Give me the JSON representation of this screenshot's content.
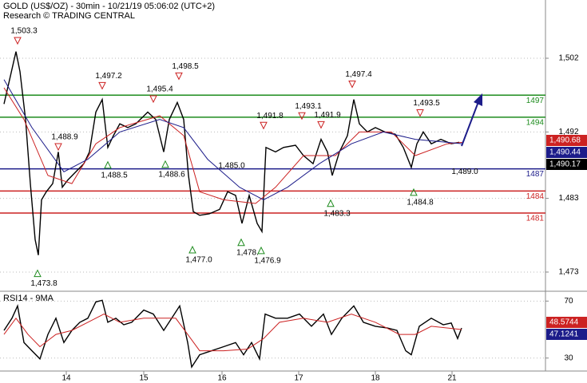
{
  "chart_data": [
    {
      "type": "line",
      "title": "GOLD (US$/OZ) - 30min - 10/21/19 05:06:02 (UTC+2)",
      "subtitle": "Research © TRADING CENTRAL",
      "xlim": [
        0,
        341.5
      ],
      "xticks": [
        {
          "value": 41.5,
          "label": "14"
        },
        {
          "value": 90,
          "label": "15"
        },
        {
          "value": 139,
          "label": "16"
        },
        {
          "value": 187,
          "label": "17"
        },
        {
          "value": 235,
          "label": "18"
        },
        {
          "value": 283,
          "label": "21"
        }
      ],
      "ylim": [
        1470.4,
        1509.9
      ],
      "yticks": [
        {
          "value": 1473,
          "label": "1,473"
        },
        {
          "value": 1483,
          "label": "1,483"
        },
        {
          "value": 1492,
          "label": "1,492"
        },
        {
          "value": 1502,
          "label": "1,502"
        }
      ],
      "levels": [
        {
          "value": 1497,
          "color": "#1e8c1e"
        },
        {
          "value": 1494,
          "color": "#1e8c1e"
        },
        {
          "value": 1487,
          "color": "#1c1c8a"
        },
        {
          "value": 1484,
          "color": "#cc2222"
        },
        {
          "value": 1481,
          "color": "#cc2222"
        }
      ],
      "series": [
        {
          "color": "#000000",
          "x": [
            2.5,
            6,
            10,
            12.5,
            16,
            19,
            22,
            24,
            26,
            29,
            33,
            36.5,
            39,
            42.5,
            47.5,
            52.5,
            56,
            60,
            64,
            67.5,
            71,
            75,
            80,
            85,
            92.5,
            97.5,
            102.5,
            106,
            111,
            115,
            118,
            121,
            125,
            131,
            137.5,
            142.5,
            147.5,
            151.5,
            156,
            161,
            164,
            166.5,
            172.5,
            177.5,
            185,
            190,
            196,
            201,
            205,
            208,
            212.5,
            217.5,
            221.5,
            225,
            230,
            235,
            241,
            247.5,
            252.5,
            257.5,
            261,
            265,
            270,
            276,
            282.5,
            287.5
          ],
          "values": [
            1495.8,
            1499.1,
            1502.9,
            1500.2,
            1493.7,
            1485.0,
            1477.4,
            1475.3,
            1482.8,
            1483.9,
            1485.0,
            1489.3,
            1484.5,
            1485.5,
            1486.6,
            1487.7,
            1489.3,
            1494.7,
            1496.4,
            1489.9,
            1491.5,
            1493.1,
            1492.6,
            1493.1,
            1494.7,
            1493.7,
            1489.3,
            1493.7,
            1496.0,
            1493.7,
            1486.1,
            1481.2,
            1480.7,
            1480.9,
            1481.5,
            1483.9,
            1483.4,
            1479.6,
            1483.4,
            1479.6,
            1478.5,
            1489.9,
            1489.3,
            1489.9,
            1490.2,
            1488.8,
            1487.7,
            1491.0,
            1489.3,
            1486.1,
            1489.3,
            1491.5,
            1496.4,
            1493.1,
            1492.0,
            1492.6,
            1492.0,
            1491.7,
            1489.9,
            1487.2,
            1490.4,
            1492.0,
            1490.4,
            1491.0,
            1490.4,
            1490.6
          ]
        },
        {
          "color": "#cc2222",
          "x": [
            2.5,
            15,
            30,
            45,
            60,
            75,
            100,
            115,
            125,
            140,
            160,
            172.5,
            190,
            210,
            225,
            245,
            260,
            280,
            290
          ],
          "values": [
            1498.0,
            1493.7,
            1486.1,
            1485.0,
            1490.4,
            1492.6,
            1494.2,
            1491.5,
            1483.9,
            1482.8,
            1482.3,
            1484.5,
            1488.8,
            1488.8,
            1492.0,
            1492.0,
            1488.8,
            1490.4,
            1490.6
          ]
        },
        {
          "color": "#1c1c8a",
          "x": [
            2.5,
            20,
            40,
            55,
            75,
            100,
            115,
            130,
            150,
            165,
            180,
            200,
            220,
            240,
            260,
            290
          ],
          "values": [
            1499.1,
            1492.6,
            1486.6,
            1488.3,
            1492.0,
            1493.7,
            1492.6,
            1488.3,
            1484.5,
            1482.8,
            1484.5,
            1487.7,
            1490.4,
            1492.0,
            1491.0,
            1490.4
          ]
        }
      ],
      "annotations": [
        {
          "label": "1,503.3",
          "x": 11,
          "value": 1503.3,
          "kind": "high",
          "marker": true
        },
        {
          "label": "1,488.9",
          "x": 36.5,
          "value": 1488.9,
          "kind": "high",
          "marker": true
        },
        {
          "label": "1,497.2",
          "x": 64,
          "value": 1497.2,
          "kind": "high",
          "marker": true
        },
        {
          "label": "1,495.4",
          "x": 96,
          "value": 1495.4,
          "kind": "high",
          "marker": true
        },
        {
          "label": "1,498.5",
          "x": 112,
          "value": 1498.5,
          "kind": "high",
          "marker": true
        },
        {
          "label": "1,485.0",
          "x": 141,
          "value": 1485.0,
          "kind": "high",
          "marker": false
        },
        {
          "label": "1,491.8",
          "x": 165,
          "value": 1491.8,
          "kind": "high",
          "marker": true
        },
        {
          "label": "1,493.1",
          "x": 189,
          "value": 1493.1,
          "kind": "high",
          "marker": true
        },
        {
          "label": "1,491.9",
          "x": 201,
          "value": 1491.9,
          "kind": "high",
          "marker": true
        },
        {
          "label": "1,497.4",
          "x": 220.5,
          "value": 1497.4,
          "kind": "high",
          "marker": true
        },
        {
          "label": "1,493.5",
          "x": 263,
          "value": 1493.5,
          "kind": "high",
          "marker": true
        },
        {
          "label": "1,473.8",
          "x": 23.5,
          "value": 1473.8,
          "kind": "low",
          "marker": true
        },
        {
          "label": "1,488.5",
          "x": 67.5,
          "value": 1488.5,
          "kind": "low",
          "marker": true
        },
        {
          "label": "1,488.6",
          "x": 103.5,
          "value": 1488.6,
          "kind": "low",
          "marker": true
        },
        {
          "label": "1,477.0",
          "x": 120.5,
          "value": 1477.0,
          "kind": "low",
          "marker": true
        },
        {
          "label": "1,478.",
          "x": 151,
          "value": 1478,
          "kind": "low",
          "marker": true
        },
        {
          "label": "1,476.9",
          "x": 163.5,
          "value": 1476.9,
          "kind": "low",
          "marker": true
        },
        {
          "label": "1,483.3",
          "x": 207,
          "value": 1483.3,
          "kind": "low",
          "marker": true
        },
        {
          "label": "1,484.8",
          "x": 259,
          "value": 1484.8,
          "kind": "low",
          "marker": true
        },
        {
          "label": "1,489.0",
          "x": 287,
          "value": 1489.0,
          "kind": "low",
          "marker": false
        }
      ],
      "price_labels": [
        {
          "value": 1490.68,
          "label": "1,490.68",
          "color": "#cc2222"
        },
        {
          "value": 1490.44,
          "label": "1,490.44",
          "color": "#1c1c8a"
        },
        {
          "value": 1490.17,
          "label": "1,490.17",
          "color": "#000000"
        }
      ]
    },
    {
      "type": "line",
      "title": "RSI14 - 9MA",
      "ylim": [
        20.9,
        76.9
      ],
      "yticks": [
        30,
        70
      ],
      "series": [
        {
          "color": "#000000",
          "x": [
            2.5,
            7.5,
            11,
            15,
            20,
            25,
            30,
            35,
            40,
            45,
            50,
            55,
            60,
            64,
            67.5,
            72.5,
            77.5,
            82.5,
            90,
            96,
            102.5,
            107.5,
            112.5,
            117.5,
            120,
            125,
            132.5,
            140,
            147.5,
            152.5,
            157.5,
            162.5,
            166,
            172.5,
            180,
            187.5,
            195,
            202.5,
            207.5,
            214,
            221.5,
            227.5,
            235,
            242.5,
            248.5,
            254,
            257.5,
            262.5,
            270,
            277.5,
            282.5,
            286.5,
            289
          ],
          "values": [
            49.4,
            58.0,
            66.6,
            40.9,
            35.1,
            29.4,
            46.6,
            58.0,
            40.9,
            49.4,
            55.1,
            58.0,
            69.4,
            70.6,
            55.1,
            58.0,
            53.4,
            55.1,
            63.7,
            60.9,
            49.4,
            58.0,
            66.6,
            40.9,
            23.7,
            32.3,
            35.1,
            38.0,
            40.9,
            32.3,
            40.9,
            29.4,
            60.9,
            58.0,
            58.0,
            60.9,
            52.3,
            60.9,
            46.6,
            58.0,
            66.6,
            55.1,
            52.3,
            51.1,
            49.4,
            35.1,
            32.3,
            52.3,
            58.0,
            53.4,
            54.6,
            43.7,
            51.1
          ]
        },
        {
          "color": "#cc2222",
          "x": [
            2.5,
            10,
            17.5,
            25,
            35,
            45,
            55,
            65,
            75,
            90,
            100,
            110,
            117.5,
            125,
            140,
            155,
            165,
            175,
            190,
            205,
            220,
            235,
            250,
            260,
            270,
            289
          ],
          "values": [
            46.6,
            58.0,
            46.6,
            38.0,
            46.6,
            49.4,
            55.1,
            60.9,
            55.1,
            58.0,
            58.0,
            58.0,
            46.6,
            35.1,
            35.1,
            36.3,
            43.7,
            55.1,
            58.0,
            55.1,
            60.9,
            55.1,
            46.6,
            46.6,
            52.3,
            50.0
          ]
        }
      ],
      "last_values": [
        {
          "value": 48.5744,
          "color": "#cc2222"
        },
        {
          "value": 47.1241,
          "color": "#1c1c8a"
        }
      ]
    }
  ]
}
